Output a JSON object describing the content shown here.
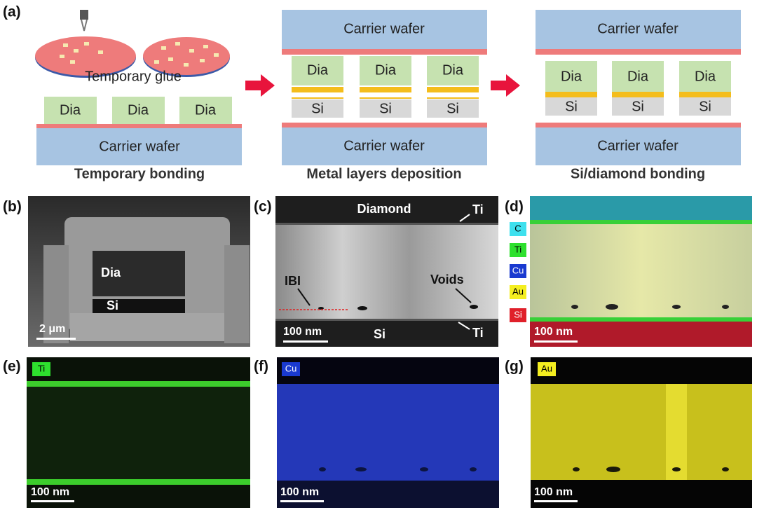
{
  "panel_a": {
    "label": "(a)",
    "glue": "Temporary glue",
    "steps": [
      {
        "title": "Temporary bonding",
        "wafer": "Carrier wafer",
        "dies": [
          "Dia",
          "Dia",
          "Dia"
        ]
      },
      {
        "title": "Metal layers deposition",
        "top_wafer": "Carrier wafer",
        "wafer": "Carrier wafer",
        "dies": [
          "Dia",
          "Dia",
          "Dia"
        ],
        "si": [
          "Si",
          "Si",
          "Si"
        ]
      },
      {
        "title": "Si/diamond bonding",
        "top_wafer": "Carrier wafer",
        "wafer": "Carrier wafer",
        "dies": [
          "Dia",
          "Dia",
          "Dia"
        ],
        "si": [
          "Si",
          "Si",
          "Si"
        ]
      }
    ]
  },
  "panel_b": {
    "label": "(b)",
    "dia": "Dia",
    "si": "Si",
    "scale": "2 μm"
  },
  "panel_c": {
    "label": "(c)",
    "diamond": "Diamond",
    "ti_top": "Ti",
    "ibi": "IBI",
    "voids": "Voids",
    "scale": "100 nm",
    "si": "Si",
    "ti_bottom": "Ti"
  },
  "panel_d": {
    "label": "(d)",
    "legend": [
      "C",
      "Ti",
      "Cu",
      "Au",
      "Si"
    ],
    "scale": "100 nm"
  },
  "panel_e": {
    "label": "(e)",
    "element": "Ti",
    "scale": "100 nm"
  },
  "panel_f": {
    "label": "(f)",
    "element": "Cu",
    "scale": "100 nm"
  },
  "panel_g": {
    "label": "(g)",
    "element": "Au",
    "scale": "100 nm"
  }
}
